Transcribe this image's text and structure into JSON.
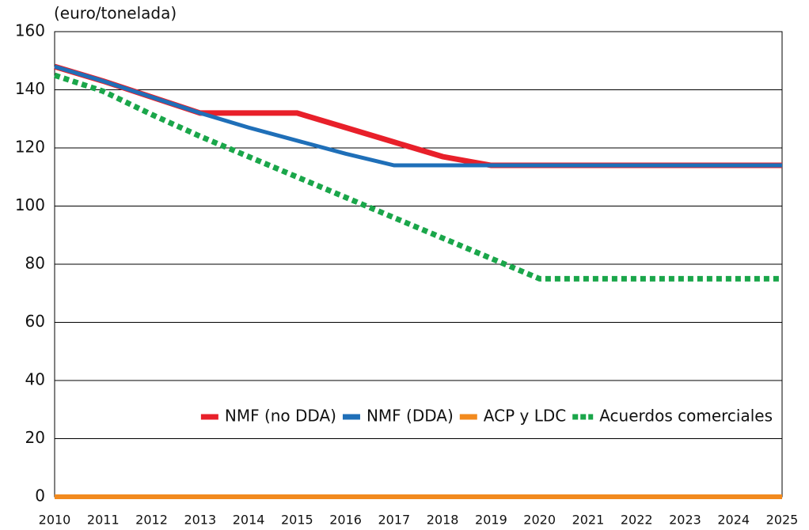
{
  "chart_data": {
    "type": "line",
    "y_label": "(euro/tonelada)",
    "x": [
      2010,
      2011,
      2012,
      2013,
      2014,
      2015,
      2016,
      2017,
      2018,
      2019,
      2020,
      2021,
      2022,
      2023,
      2024,
      2025
    ],
    "series": [
      {
        "name": "NMF (no DDA)",
        "color": "#e8202a",
        "width": 7,
        "values": [
          148,
          143,
          137.5,
          132,
          132,
          132,
          127,
          122,
          117,
          114,
          114,
          114,
          114,
          114,
          114,
          114
        ]
      },
      {
        "name": "NMF (DDA)",
        "color": "#1f6fb8",
        "width": 5,
        "values": [
          148,
          143,
          137.5,
          132,
          127,
          122.5,
          118,
          114,
          114,
          114,
          114,
          114,
          114,
          114,
          114,
          114
        ]
      },
      {
        "name": "ACP y LDC",
        "color": "#f28a1e",
        "width": 6,
        "values": [
          0,
          0,
          0,
          0,
          0,
          0,
          0,
          0,
          0,
          0,
          0,
          0,
          0,
          0,
          0,
          0
        ]
      },
      {
        "name": "Acuerdos comerciales",
        "color": "#1aa64a",
        "width": 7,
        "style": "dotted",
        "values": [
          145,
          139.5,
          131.5,
          124,
          117,
          110,
          103,
          96,
          89,
          82,
          75,
          75,
          75,
          75,
          75,
          75
        ]
      }
    ],
    "xlim": [
      2010,
      2025
    ],
    "xticks": [
      2010,
      2011,
      2012,
      2013,
      2014,
      2015,
      2016,
      2017,
      2018,
      2019,
      2020,
      2021,
      2022,
      2023,
      2024,
      2025
    ],
    "ylim": [
      0,
      160
    ],
    "yticks": [
      0,
      20,
      40,
      60,
      80,
      100,
      120,
      140,
      160
    ],
    "grid": true,
    "legend": "lower right"
  }
}
